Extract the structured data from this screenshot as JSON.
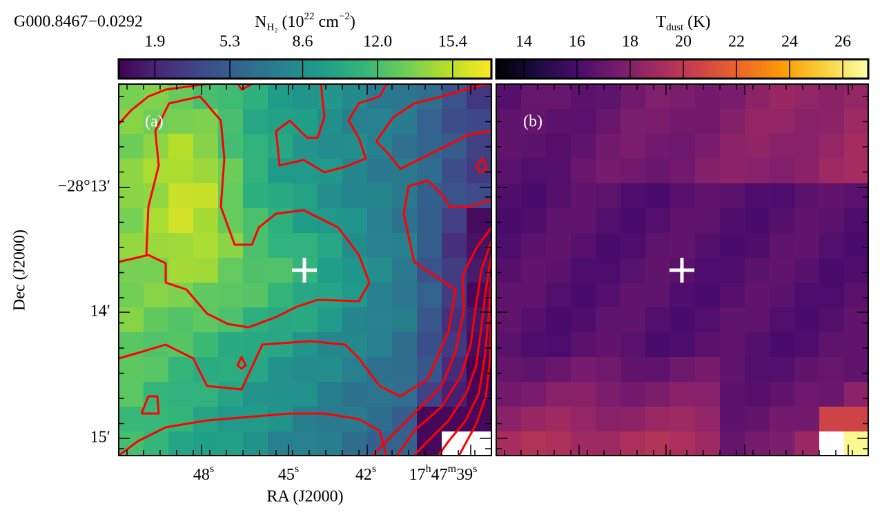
{
  "title": "G000.8467−0.0292",
  "panels": [
    {
      "label": "(a)",
      "colorbar": {
        "label": [
          {
            "text": "N"
          },
          {
            "text": "H₂",
            "shift": "sub"
          },
          {
            "text": " (10"
          },
          {
            "text": "22",
            "shift": "super"
          },
          {
            "text": " cm"
          },
          {
            "text": "−2",
            "shift": "super"
          },
          {
            "text": ")"
          }
        ],
        "colormap": "viridis",
        "range": [
          0.26,
          17.16
        ],
        "ticks": [
          1.9,
          5.3,
          8.6,
          {
            "value": 12,
            "label": "12.0"
          },
          15.4
        ]
      }
    },
    {
      "label": "(b)",
      "colorbar": {
        "label": [
          {
            "text": "T"
          },
          {
            "text": "dust",
            "shift": "sub"
          },
          {
            "text": " (K)"
          }
        ],
        "colormap": "inferno",
        "range": [
          12.96,
          26.96
        ],
        "ticks": [
          14,
          16,
          18,
          20,
          22,
          24,
          26
        ]
      }
    }
  ],
  "x_axis": {
    "label": "RA (J2000)",
    "tick_labels": [
      [
        "48",
        "s"
      ],
      [
        "45",
        "s"
      ],
      [
        "42",
        "s"
      ],
      [
        "17",
        "h",
        "47",
        "m",
        "39",
        "s"
      ]
    ]
  },
  "y_axis": {
    "label": "Dec (J2000)",
    "tick_labels": [
      "−28°13′",
      "14′",
      "15′"
    ]
  }
}
